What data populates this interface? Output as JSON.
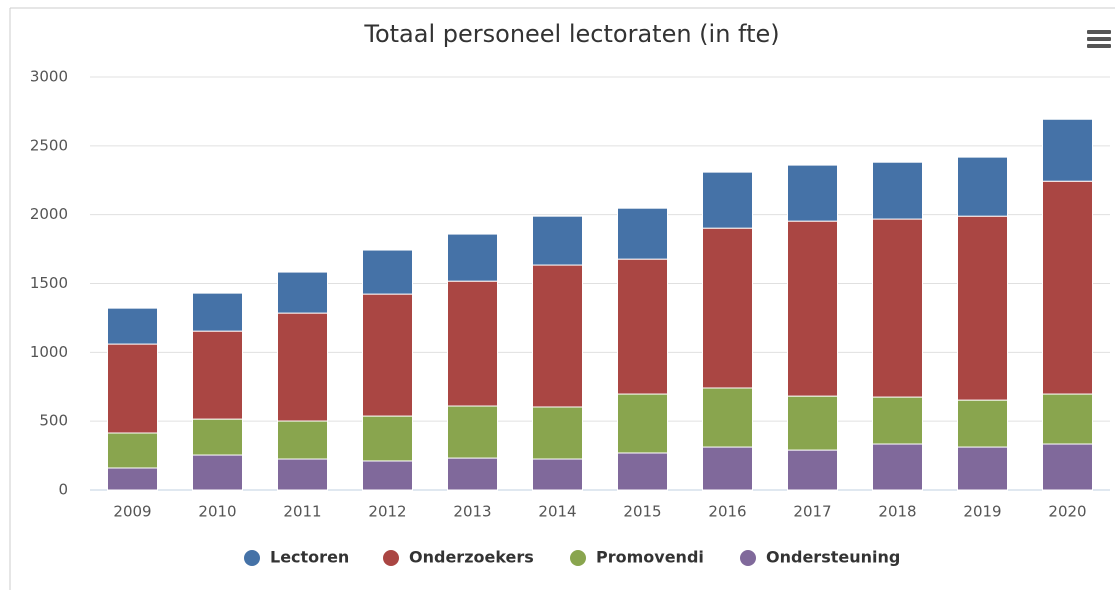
{
  "chart_data": {
    "type": "stacked_bar",
    "title": "Totaal personeel lectoraten (in fte)",
    "categories": [
      "2009",
      "2010",
      "2011",
      "2012",
      "2013",
      "2014",
      "2015",
      "2016",
      "2017",
      "2018",
      "2019",
      "2020"
    ],
    "series": [
      {
        "name": "Lectoren",
        "color": "#4572a7",
        "values": [
          261,
          276,
          298,
          320,
          342,
          355,
          370,
          407,
          407,
          413,
          429,
          450
        ]
      },
      {
        "name": "Onderzoekers",
        "color": "#aa4643",
        "values": [
          646,
          639,
          784,
          886,
          907,
          1031,
          980,
          1161,
          1271,
          1293,
          1336,
          1546
        ]
      },
      {
        "name": "Promovendi",
        "color": "#89a54e",
        "values": [
          254,
          261,
          276,
          326,
          378,
          378,
          428,
          429,
          392,
          341,
          341,
          363
        ]
      },
      {
        "name": "Ondersteuning",
        "color": "#80699b",
        "values": [
          160,
          254,
          225,
          211,
          232,
          225,
          269,
          312,
          290,
          334,
          312,
          334
        ]
      }
    ],
    "ylim": [
      0,
      3000
    ],
    "yticks": [
      0,
      500,
      1000,
      1500,
      2000,
      2500,
      3000
    ],
    "grid": true,
    "legend": "bottom"
  }
}
